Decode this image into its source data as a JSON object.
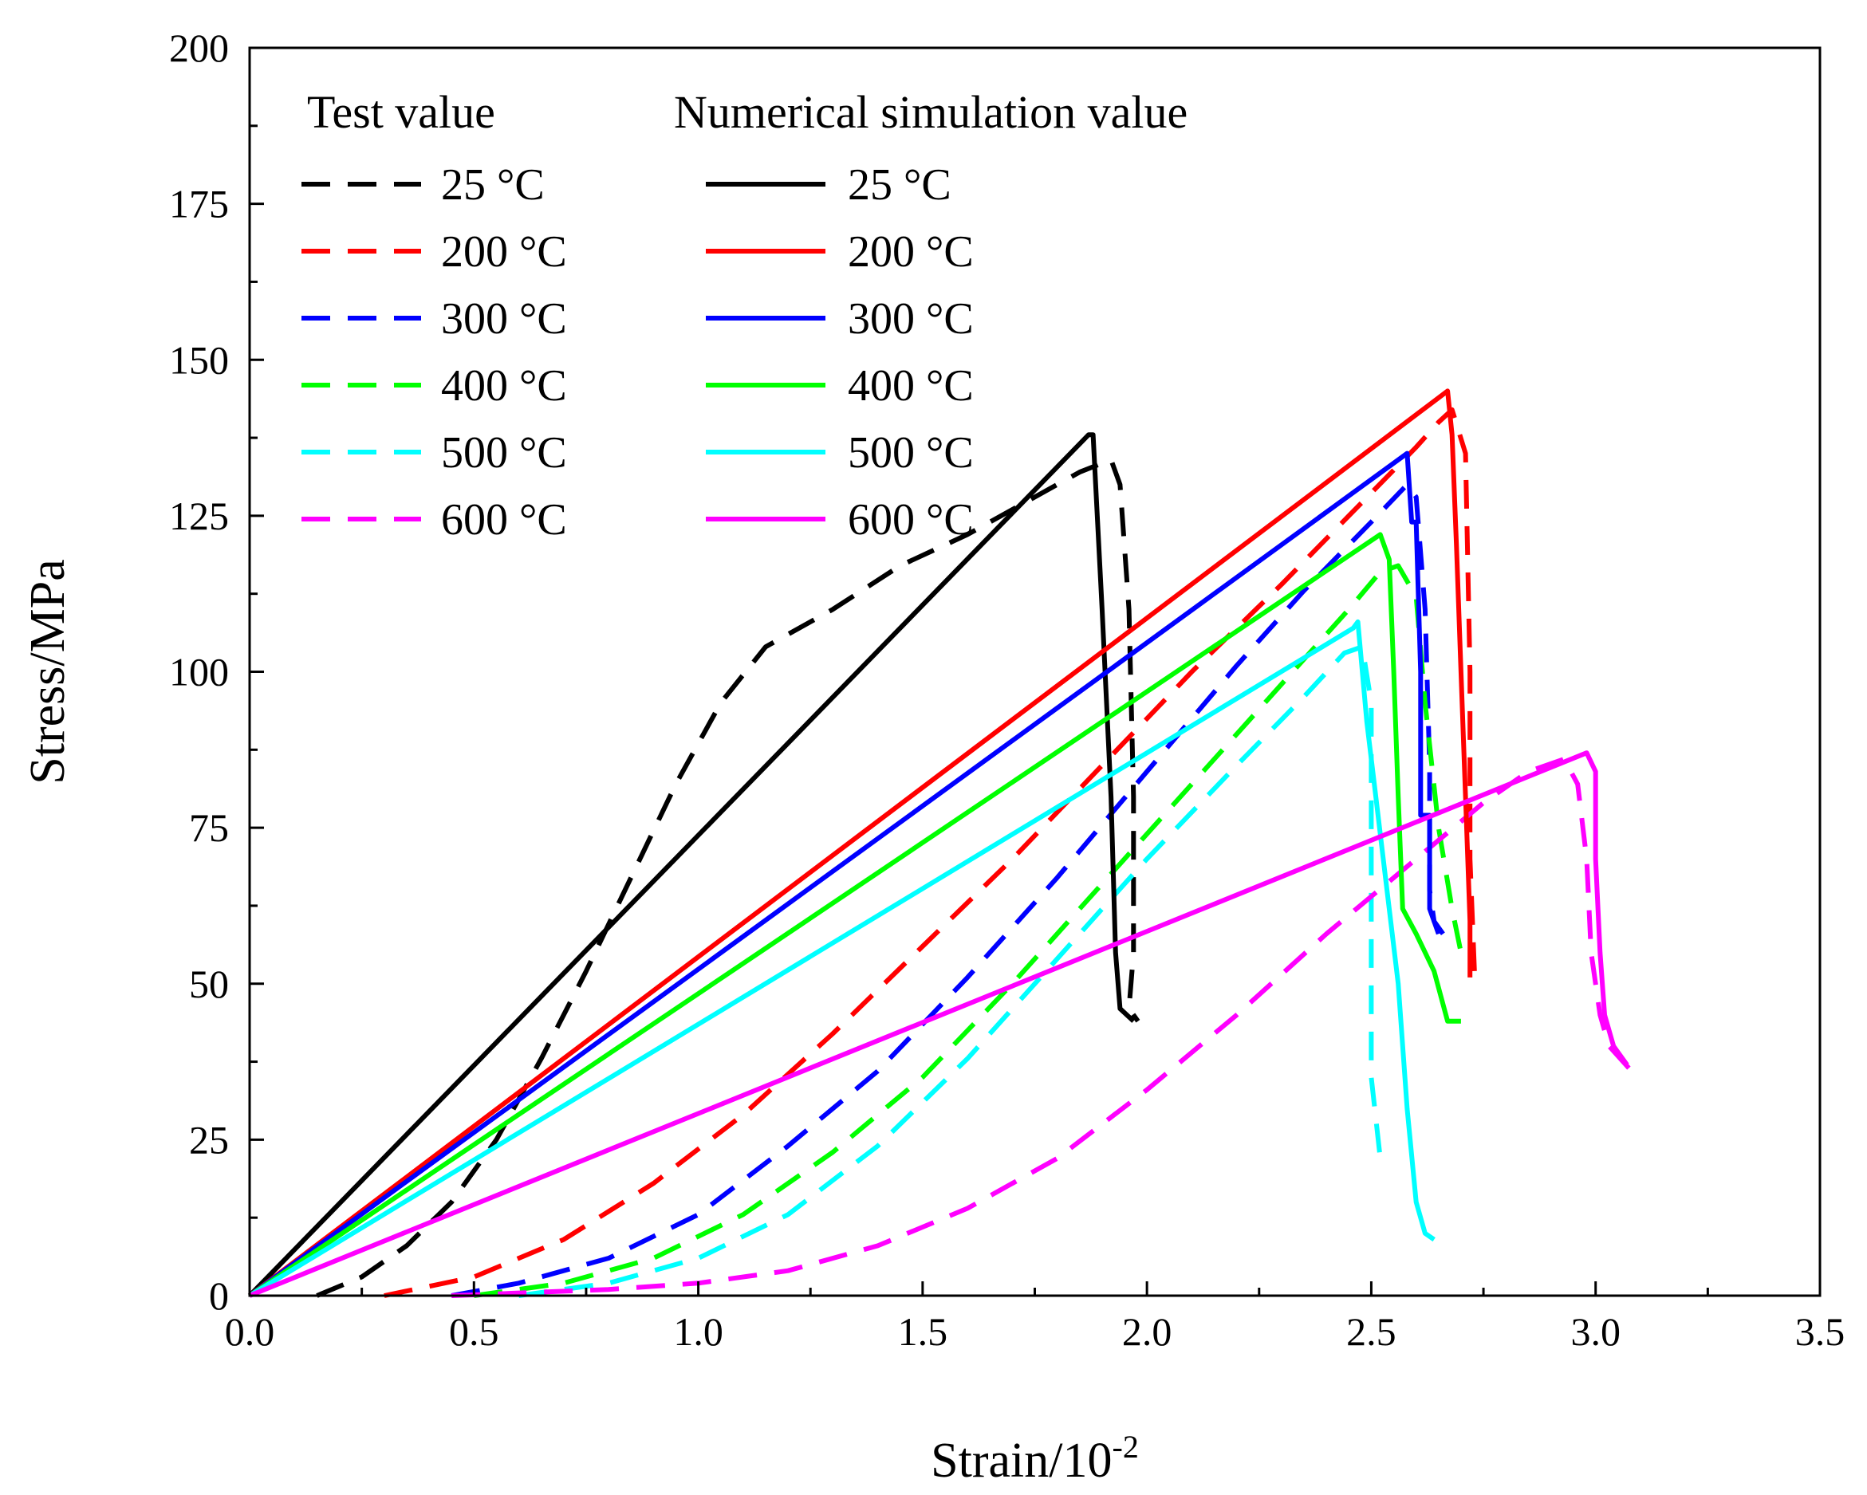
{
  "chart_data": {
    "type": "line",
    "xlabel": "Strain/10",
    "xlabel_sup": "-2",
    "ylabel": "Stress/MPa",
    "xlim": [
      0,
      3.5
    ],
    "ylim": [
      0,
      200
    ],
    "xticks": [
      0.0,
      0.5,
      1.0,
      1.5,
      2.0,
      2.5,
      3.0,
      3.5
    ],
    "xtick_labels": [
      "0.0",
      "0.5",
      "1.0",
      "1.5",
      "2.0",
      "2.5",
      "3.0",
      "3.5"
    ],
    "yticks": [
      0,
      25,
      50,
      75,
      100,
      125,
      150,
      175,
      200
    ],
    "ytick_labels": [
      "0",
      "25",
      "50",
      "75",
      "100",
      "125",
      "150",
      "175",
      "200"
    ],
    "grid": false,
    "legend": {
      "placement": "top-left",
      "test_heading": "Test value",
      "sim_heading": "Numerical simulation value"
    },
    "series": [
      {
        "name": "25 °C",
        "group": "test",
        "style": "dashed",
        "color": "#000000",
        "points": [
          [
            0.15,
            0
          ],
          [
            0.25,
            3
          ],
          [
            0.35,
            8
          ],
          [
            0.45,
            15
          ],
          [
            0.55,
            25
          ],
          [
            0.65,
            38
          ],
          [
            0.75,
            52
          ],
          [
            0.85,
            67
          ],
          [
            0.95,
            82
          ],
          [
            1.05,
            95
          ],
          [
            1.15,
            104
          ],
          [
            1.3,
            110
          ],
          [
            1.45,
            117
          ],
          [
            1.6,
            122
          ],
          [
            1.75,
            128
          ],
          [
            1.85,
            132
          ],
          [
            1.92,
            134
          ],
          [
            1.94,
            130
          ],
          [
            1.96,
            110
          ],
          [
            1.97,
            80
          ],
          [
            1.97,
            55
          ],
          [
            1.96,
            46
          ],
          [
            1.98,
            44
          ]
        ]
      },
      {
        "name": "200 °C",
        "group": "test",
        "style": "dashed",
        "color": "#ff0000",
        "points": [
          [
            0.3,
            0
          ],
          [
            0.5,
            3
          ],
          [
            0.7,
            9
          ],
          [
            0.9,
            18
          ],
          [
            1.1,
            29
          ],
          [
            1.3,
            42
          ],
          [
            1.5,
            56
          ],
          [
            1.7,
            70
          ],
          [
            1.9,
            85
          ],
          [
            2.1,
            100
          ],
          [
            2.3,
            114
          ],
          [
            2.45,
            125
          ],
          [
            2.6,
            136
          ],
          [
            2.65,
            140
          ],
          [
            2.68,
            142
          ],
          [
            2.71,
            135
          ],
          [
            2.72,
            100
          ],
          [
            2.72,
            70
          ],
          [
            2.73,
            52
          ],
          [
            2.75,
            51
          ]
        ]
      },
      {
        "name": "300 °C",
        "group": "test",
        "style": "dashed",
        "color": "#0000ff",
        "points": [
          [
            0.45,
            0
          ],
          [
            0.6,
            2
          ],
          [
            0.8,
            6
          ],
          [
            1.0,
            13
          ],
          [
            1.2,
            24
          ],
          [
            1.4,
            36
          ],
          [
            1.6,
            51
          ],
          [
            1.8,
            67
          ],
          [
            2.0,
            84
          ],
          [
            2.2,
            101
          ],
          [
            2.35,
            113
          ],
          [
            2.5,
            124
          ],
          [
            2.58,
            130
          ],
          [
            2.6,
            128
          ],
          [
            2.62,
            110
          ],
          [
            2.63,
            85
          ],
          [
            2.63,
            65
          ],
          [
            2.64,
            60
          ],
          [
            2.66,
            58
          ]
        ]
      },
      {
        "name": "400 °C",
        "group": "test",
        "style": "dashed",
        "color": "#00ff00",
        "points": [
          [
            0.5,
            0
          ],
          [
            0.7,
            2
          ],
          [
            0.9,
            6
          ],
          [
            1.1,
            13
          ],
          [
            1.3,
            23
          ],
          [
            1.5,
            35
          ],
          [
            1.7,
            50
          ],
          [
            1.9,
            66
          ],
          [
            2.1,
            82
          ],
          [
            2.3,
            98
          ],
          [
            2.45,
            110
          ],
          [
            2.52,
            116
          ],
          [
            2.56,
            117
          ],
          [
            2.6,
            112
          ],
          [
            2.62,
            95
          ],
          [
            2.65,
            75
          ],
          [
            2.68,
            62
          ],
          [
            2.7,
            55
          ],
          [
            2.71,
            53
          ]
        ]
      },
      {
        "name": "500 °C",
        "group": "test",
        "style": "dashed",
        "color": "#00ffff",
        "points": [
          [
            0.6,
            0
          ],
          [
            0.8,
            2
          ],
          [
            1.0,
            6
          ],
          [
            1.2,
            13
          ],
          [
            1.4,
            24
          ],
          [
            1.6,
            38
          ],
          [
            1.8,
            54
          ],
          [
            2.0,
            70
          ],
          [
            2.2,
            85
          ],
          [
            2.35,
            96
          ],
          [
            2.44,
            103
          ],
          [
            2.48,
            104
          ],
          [
            2.5,
            95
          ],
          [
            2.5,
            80
          ],
          [
            2.5,
            55
          ],
          [
            2.5,
            35
          ],
          [
            2.52,
            22
          ]
        ]
      },
      {
        "name": "600 °C",
        "group": "test",
        "style": "dashed",
        "color": "#ff00ff",
        "points": [
          [
            0.45,
            0
          ],
          [
            0.8,
            1
          ],
          [
            1.0,
            2
          ],
          [
            1.2,
            4
          ],
          [
            1.4,
            8
          ],
          [
            1.6,
            14
          ],
          [
            1.8,
            22
          ],
          [
            2.0,
            33
          ],
          [
            2.2,
            45
          ],
          [
            2.4,
            58
          ],
          [
            2.6,
            70
          ],
          [
            2.75,
            79
          ],
          [
            2.85,
            84
          ],
          [
            2.93,
            86
          ],
          [
            2.96,
            82
          ],
          [
            2.98,
            70
          ],
          [
            2.99,
            55
          ],
          [
            3.01,
            45
          ],
          [
            3.03,
            40
          ],
          [
            3.08,
            36
          ]
        ]
      },
      {
        "name": "25 °C",
        "group": "sim",
        "style": "solid",
        "color": "#000000",
        "points": [
          [
            0,
            0
          ],
          [
            1.87,
            138
          ],
          [
            1.88,
            138
          ],
          [
            1.9,
            110
          ],
          [
            1.92,
            80
          ],
          [
            1.93,
            55
          ],
          [
            1.94,
            46
          ],
          [
            1.97,
            44
          ]
        ]
      },
      {
        "name": "200 °C",
        "group": "sim",
        "style": "solid",
        "color": "#ff0000",
        "points": [
          [
            0,
            0
          ],
          [
            2.67,
            145
          ],
          [
            2.68,
            138
          ],
          [
            2.69,
            120
          ],
          [
            2.7,
            100
          ],
          [
            2.71,
            80
          ],
          [
            2.72,
            60
          ],
          [
            2.72,
            51
          ]
        ]
      },
      {
        "name": "300 °C",
        "group": "sim",
        "style": "solid",
        "color": "#0000ff",
        "points": [
          [
            0,
            0
          ],
          [
            2.58,
            135
          ],
          [
            2.59,
            124
          ],
          [
            2.6,
            124
          ],
          [
            2.61,
            100
          ],
          [
            2.61,
            77
          ],
          [
            2.63,
            77
          ],
          [
            2.63,
            62
          ],
          [
            2.64,
            60
          ],
          [
            2.65,
            58
          ]
        ]
      },
      {
        "name": "400 °C",
        "group": "sim",
        "style": "solid",
        "color": "#00ff00",
        "points": [
          [
            0,
            0
          ],
          [
            2.52,
            122
          ],
          [
            2.54,
            118
          ],
          [
            2.55,
            100
          ],
          [
            2.56,
            80
          ],
          [
            2.57,
            62
          ],
          [
            2.6,
            58
          ],
          [
            2.64,
            52
          ],
          [
            2.67,
            44
          ],
          [
            2.7,
            44
          ]
        ]
      },
      {
        "name": "500 °C",
        "group": "sim",
        "style": "solid",
        "color": "#00ffff",
        "points": [
          [
            0,
            0
          ],
          [
            2.46,
            107
          ],
          [
            2.47,
            108
          ],
          [
            2.48,
            100
          ],
          [
            2.49,
            92
          ],
          [
            2.51,
            80
          ],
          [
            2.53,
            68
          ],
          [
            2.56,
            50
          ],
          [
            2.58,
            30
          ],
          [
            2.6,
            15
          ],
          [
            2.62,
            10
          ],
          [
            2.64,
            9
          ]
        ]
      },
      {
        "name": "600 °C",
        "group": "sim",
        "style": "solid",
        "color": "#ff00ff",
        "points": [
          [
            0,
            0
          ],
          [
            2.98,
            87
          ],
          [
            3.0,
            84
          ],
          [
            3.0,
            70
          ],
          [
            3.01,
            55
          ],
          [
            3.02,
            45
          ],
          [
            3.04,
            40
          ],
          [
            3.07,
            37
          ]
        ]
      }
    ]
  }
}
